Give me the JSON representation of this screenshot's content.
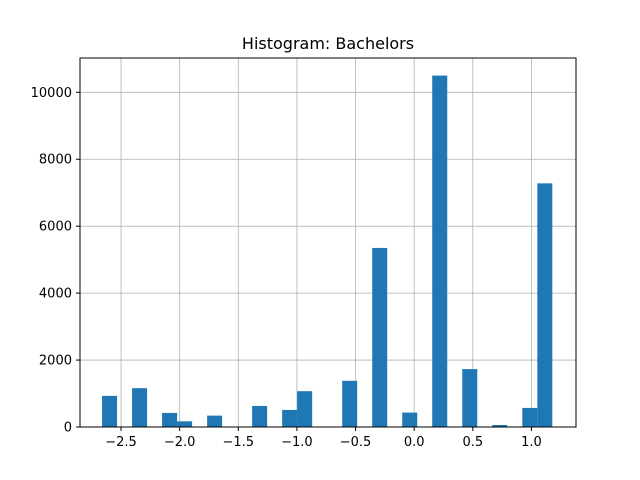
{
  "chart_data": {
    "type": "bar",
    "title": "Histogram:  Bachelors",
    "xlabel": "",
    "ylabel": "",
    "xlim": [
      -2.85,
      1.38
    ],
    "ylim": [
      0,
      11025
    ],
    "grid": true,
    "color": "#1f77b4",
    "x_ticks": [
      -2.5,
      -2.0,
      -1.5,
      -1.0,
      -0.5,
      0.0,
      0.5,
      1.0
    ],
    "x_tick_labels": [
      "−2.5",
      "−2.0",
      "−1.5",
      "−1.0",
      "−0.5",
      "0.0",
      "0.5",
      "1.0"
    ],
    "y_ticks": [
      0,
      2000,
      4000,
      6000,
      8000,
      10000
    ],
    "y_tick_labels": [
      "0",
      "2000",
      "4000",
      "6000",
      "8000",
      "10000"
    ],
    "bins": [
      {
        "x0": -2.662,
        "x1": -2.534,
        "value": 930
      },
      {
        "x0": -2.406,
        "x1": -2.278,
        "value": 1160
      },
      {
        "x0": -2.15,
        "x1": -2.022,
        "value": 420
      },
      {
        "x0": -2.022,
        "x1": -1.894,
        "value": 170
      },
      {
        "x0": -1.766,
        "x1": -1.638,
        "value": 340
      },
      {
        "x0": -1.382,
        "x1": -1.254,
        "value": 630
      },
      {
        "x0": -1.126,
        "x1": -0.998,
        "value": 510
      },
      {
        "x0": -0.998,
        "x1": -0.87,
        "value": 1070
      },
      {
        "x0": -0.614,
        "x1": -0.486,
        "value": 1380
      },
      {
        "x0": -0.358,
        "x1": -0.23,
        "value": 5350
      },
      {
        "x0": -0.102,
        "x1": 0.026,
        "value": 430
      },
      {
        "x0": 0.154,
        "x1": 0.282,
        "value": 10500
      },
      {
        "x0": 0.41,
        "x1": 0.538,
        "value": 1730
      },
      {
        "x0": 0.666,
        "x1": 0.794,
        "value": 60
      },
      {
        "x0": 0.922,
        "x1": 1.05,
        "value": 570
      },
      {
        "x0": 1.05,
        "x1": 1.178,
        "value": 7280
      }
    ]
  }
}
